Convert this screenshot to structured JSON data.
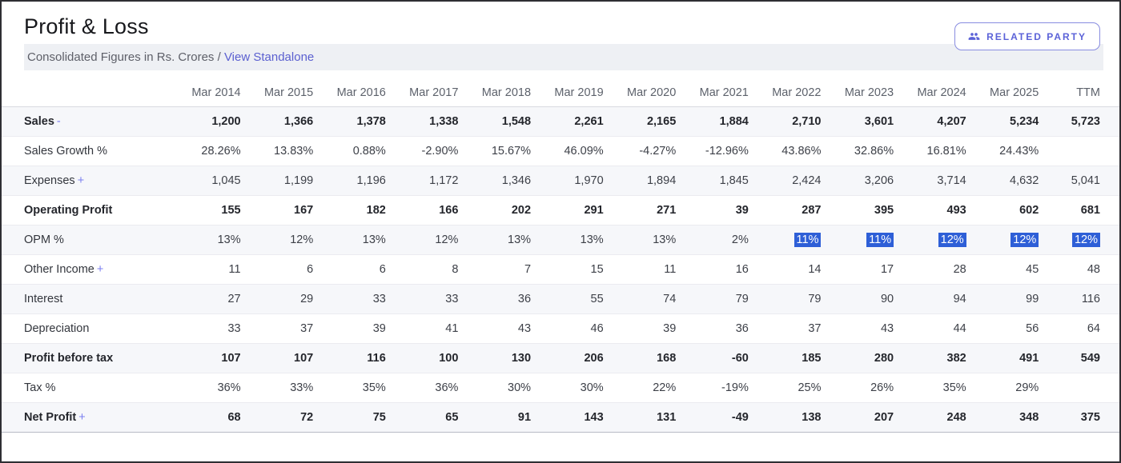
{
  "header": {
    "title": "Profit & Loss",
    "subtitle_prefix": "Consolidated Figures in Rs. Crores /",
    "standalone_link": "View Standalone",
    "related_party_button": "RELATED PARTY"
  },
  "colors": {
    "accent": "#5a5fd0",
    "selection_bg": "#2e5fd7",
    "selection_text": "#ffffff",
    "stripe": "#f6f7fa"
  },
  "chart_data": {
    "type": "table",
    "title": "Profit & Loss",
    "categories": [
      "Mar 2014",
      "Mar 2015",
      "Mar 2016",
      "Mar 2017",
      "Mar 2018",
      "Mar 2019",
      "Mar 2020",
      "Mar 2021",
      "Mar 2022",
      "Mar 2023",
      "Mar 2024",
      "Mar 2025",
      "TTM"
    ],
    "series": [
      {
        "name": "Sales",
        "values": [
          "1,200",
          "1,366",
          "1,378",
          "1,338",
          "1,548",
          "2,261",
          "2,165",
          "1,884",
          "2,710",
          "3,601",
          "4,207",
          "5,234",
          "5,723"
        ]
      },
      {
        "name": "Sales Growth %",
        "values": [
          "28.26%",
          "13.83%",
          "0.88%",
          "-2.90%",
          "15.67%",
          "46.09%",
          "-4.27%",
          "-12.96%",
          "43.86%",
          "32.86%",
          "16.81%",
          "24.43%",
          ""
        ]
      },
      {
        "name": "Expenses",
        "values": [
          "1,045",
          "1,199",
          "1,196",
          "1,172",
          "1,346",
          "1,970",
          "1,894",
          "1,845",
          "2,424",
          "3,206",
          "3,714",
          "4,632",
          "5,041"
        ]
      },
      {
        "name": "Operating Profit",
        "values": [
          "155",
          "167",
          "182",
          "166",
          "202",
          "291",
          "271",
          "39",
          "287",
          "395",
          "493",
          "602",
          "681"
        ]
      },
      {
        "name": "OPM %",
        "values": [
          "13%",
          "12%",
          "13%",
          "12%",
          "13%",
          "13%",
          "13%",
          "2%",
          "11%",
          "11%",
          "12%",
          "12%",
          "12%"
        ]
      },
      {
        "name": "Other Income",
        "values": [
          "11",
          "6",
          "6",
          "8",
          "7",
          "15",
          "11",
          "16",
          "14",
          "17",
          "28",
          "45",
          "48"
        ]
      },
      {
        "name": "Interest",
        "values": [
          "27",
          "29",
          "33",
          "33",
          "36",
          "55",
          "74",
          "79",
          "79",
          "90",
          "94",
          "99",
          "116"
        ]
      },
      {
        "name": "Depreciation",
        "values": [
          "33",
          "37",
          "39",
          "41",
          "43",
          "46",
          "39",
          "36",
          "37",
          "43",
          "44",
          "56",
          "64"
        ]
      },
      {
        "name": "Profit before tax",
        "values": [
          "107",
          "107",
          "116",
          "100",
          "130",
          "206",
          "168",
          "-60",
          "185",
          "280",
          "382",
          "491",
          "549"
        ]
      },
      {
        "name": "Tax %",
        "values": [
          "36%",
          "33%",
          "35%",
          "36%",
          "30%",
          "30%",
          "22%",
          "-19%",
          "25%",
          "26%",
          "35%",
          "29%",
          ""
        ]
      },
      {
        "name": "Net Profit",
        "values": [
          "68",
          "72",
          "75",
          "65",
          "91",
          "143",
          "131",
          "-49",
          "138",
          "207",
          "248",
          "348",
          "375"
        ]
      }
    ]
  },
  "table": {
    "columns": [
      "",
      "Mar 2014",
      "Mar 2015",
      "Mar 2016",
      "Mar 2017",
      "Mar 2018",
      "Mar 2019",
      "Mar 2020",
      "Mar 2021",
      "Mar 2022",
      "Mar 2023",
      "Mar 2024",
      "Mar 2025",
      "TTM"
    ],
    "rows": [
      {
        "label": "Sales",
        "toggle": "-",
        "bold": true,
        "divider": false,
        "values": [
          "1,200",
          "1,366",
          "1,378",
          "1,338",
          "1,548",
          "2,261",
          "2,165",
          "1,884",
          "2,710",
          "3,601",
          "4,207",
          "5,234",
          "5,723"
        ],
        "highlight": []
      },
      {
        "label": "Sales Growth %",
        "toggle": null,
        "bold": false,
        "divider": false,
        "values": [
          "28.26%",
          "13.83%",
          "0.88%",
          "-2.90%",
          "15.67%",
          "46.09%",
          "-4.27%",
          "-12.96%",
          "43.86%",
          "32.86%",
          "16.81%",
          "24.43%",
          ""
        ],
        "highlight": []
      },
      {
        "label": "Expenses",
        "toggle": "+",
        "bold": false,
        "divider": false,
        "values": [
          "1,045",
          "1,199",
          "1,196",
          "1,172",
          "1,346",
          "1,970",
          "1,894",
          "1,845",
          "2,424",
          "3,206",
          "3,714",
          "4,632",
          "5,041"
        ],
        "highlight": []
      },
      {
        "label": "Operating Profit",
        "toggle": null,
        "bold": true,
        "divider": true,
        "values": [
          "155",
          "167",
          "182",
          "166",
          "202",
          "291",
          "271",
          "39",
          "287",
          "395",
          "493",
          "602",
          "681"
        ],
        "highlight": []
      },
      {
        "label": "OPM %",
        "toggle": null,
        "bold": false,
        "divider": false,
        "values": [
          "13%",
          "12%",
          "13%",
          "12%",
          "13%",
          "13%",
          "13%",
          "2%",
          "11%",
          "11%",
          "12%",
          "12%",
          "12%"
        ],
        "highlight": [
          8,
          9,
          10,
          11,
          12
        ]
      },
      {
        "label": "Other Income",
        "toggle": "+",
        "bold": false,
        "divider": false,
        "values": [
          "11",
          "6",
          "6",
          "8",
          "7",
          "15",
          "11",
          "16",
          "14",
          "17",
          "28",
          "45",
          "48"
        ],
        "highlight": []
      },
      {
        "label": "Interest",
        "toggle": null,
        "bold": false,
        "divider": false,
        "values": [
          "27",
          "29",
          "33",
          "33",
          "36",
          "55",
          "74",
          "79",
          "79",
          "90",
          "94",
          "99",
          "116"
        ],
        "highlight": []
      },
      {
        "label": "Depreciation",
        "toggle": null,
        "bold": false,
        "divider": false,
        "values": [
          "33",
          "37",
          "39",
          "41",
          "43",
          "46",
          "39",
          "36",
          "37",
          "43",
          "44",
          "56",
          "64"
        ],
        "highlight": []
      },
      {
        "label": "Profit before tax",
        "toggle": null,
        "bold": true,
        "divider": true,
        "values": [
          "107",
          "107",
          "116",
          "100",
          "130",
          "206",
          "168",
          "-60",
          "185",
          "280",
          "382",
          "491",
          "549"
        ],
        "highlight": []
      },
      {
        "label": "Tax %",
        "toggle": null,
        "bold": false,
        "divider": false,
        "values": [
          "36%",
          "33%",
          "35%",
          "36%",
          "30%",
          "30%",
          "22%",
          "-19%",
          "25%",
          "26%",
          "35%",
          "29%",
          ""
        ],
        "highlight": []
      },
      {
        "label": "Net Profit",
        "toggle": "+",
        "bold": true,
        "divider": true,
        "values": [
          "68",
          "72",
          "75",
          "65",
          "91",
          "143",
          "131",
          "-49",
          "138",
          "207",
          "248",
          "348",
          "375"
        ],
        "highlight": []
      }
    ]
  }
}
